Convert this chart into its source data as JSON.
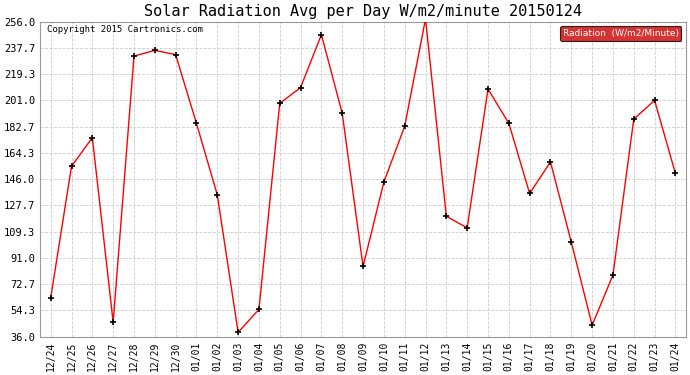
{
  "title": "Solar Radiation Avg per Day W/m2/minute 20150124",
  "copyright": "Copyright 2015 Cartronics.com",
  "legend_label": "Radiation  (W/m2/Minute)",
  "labels": [
    "12/24",
    "12/25",
    "12/26",
    "12/27",
    "12/28",
    "12/29",
    "12/30",
    "01/01",
    "01/02",
    "01/03",
    "01/04",
    "01/05",
    "01/06",
    "01/07",
    "01/08",
    "01/09",
    "01/10",
    "01/11",
    "01/12",
    "01/13",
    "01/14",
    "01/15",
    "01/16",
    "01/17",
    "01/18",
    "01/19",
    "01/20",
    "01/21",
    "01/22",
    "01/23",
    "01/24"
  ],
  "values": [
    63.0,
    155.0,
    175.0,
    46.0,
    232.0,
    236.0,
    233.0,
    185.0,
    135.0,
    39.0,
    55.0,
    199.0,
    210.0,
    247.0,
    192.0,
    85.0,
    144.0,
    183.0,
    258.0,
    120.0,
    112.0,
    209.0,
    185.0,
    136.0,
    158.0,
    102.0,
    44.0,
    79.0,
    188.0,
    201.0,
    150.0
  ],
  "ylim": [
    36.0,
    256.0
  ],
  "yticks": [
    36.0,
    54.3,
    72.7,
    91.0,
    109.3,
    127.7,
    146.0,
    164.3,
    182.7,
    201.0,
    219.3,
    237.7,
    256.0
  ],
  "line_color": "red",
  "marker_color": "black",
  "bg_color": "white",
  "grid_color": "#cccccc",
  "title_fontsize": 11,
  "legend_bg": "#cc0000",
  "legend_fg": "white",
  "tick_fontsize": 7.5,
  "xtick_fontsize": 7
}
